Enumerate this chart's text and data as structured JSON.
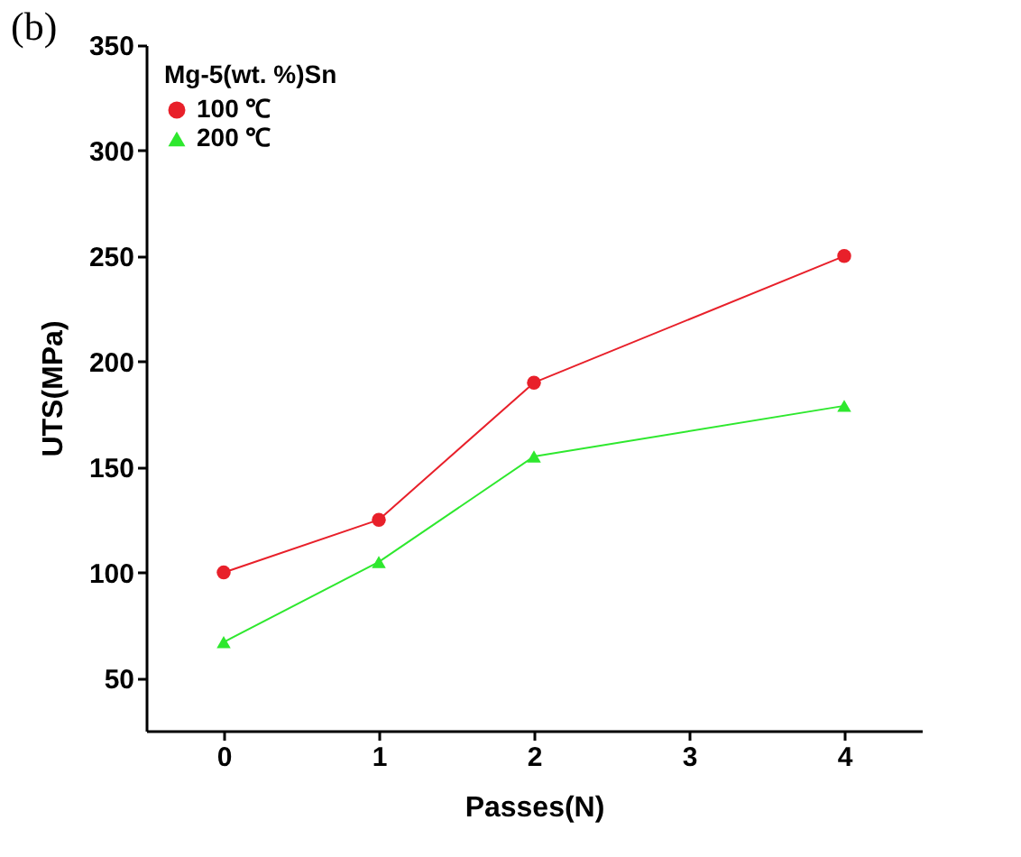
{
  "chart_data": {
    "type": "line",
    "xlabel": "Passes(N)",
    "ylabel": "UTS(MPa)",
    "legend_title": "Mg-5(wt. %)Sn",
    "annotations": [
      "(b)"
    ],
    "x": [
      0,
      1,
      2,
      4
    ],
    "series": [
      {
        "name": "100 ℃",
        "color": "#e8202a",
        "marker": "circle",
        "values": [
          100,
          125,
          190,
          250
        ]
      },
      {
        "name": "200 ℃",
        "color": "#2ee82e",
        "marker": "triangle",
        "values": [
          67,
          105,
          155,
          179
        ]
      }
    ],
    "xlim": [
      -0.5,
      4.5
    ],
    "xticks": [
      0,
      1,
      2,
      3,
      4
    ],
    "ylim": [
      25,
      350
    ],
    "yticks": [
      50,
      100,
      150,
      200,
      250,
      300,
      350
    ],
    "grid": false,
    "legend": "top left"
  }
}
